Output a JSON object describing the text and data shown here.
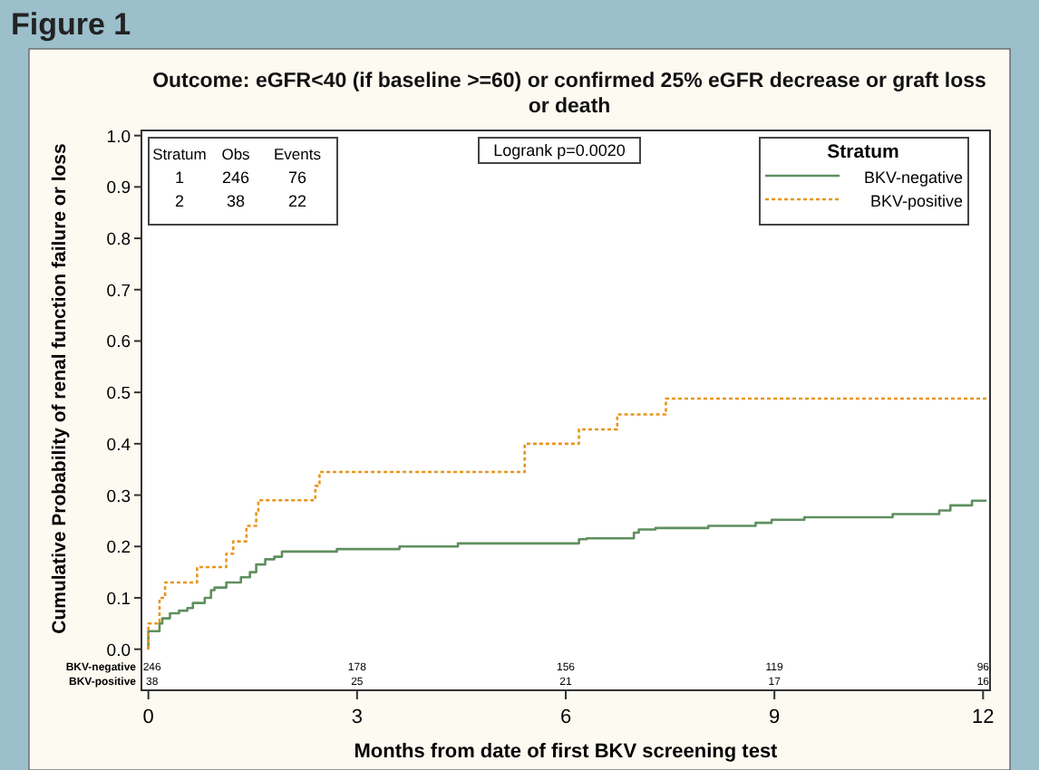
{
  "chart_data": {
    "type": "step",
    "title": "Outcome: eGFR<40 (if baseline >=60) or confirmed 25% eGFR decrease or graft loss or death",
    "xlabel": "Months from date of first BKV screening test",
    "ylabel": "Cumulative Probability of renal function failure or loss",
    "legend_title": "Stratum",
    "legend": "top right",
    "annotations": [
      "Figure 1",
      "Logrank p=0.0020",
      "Stratum",
      "Obs",
      "Events",
      "1",
      "246",
      "76",
      "2",
      "38",
      "22",
      "246",
      "178",
      "156",
      "119",
      "96",
      "38",
      "25",
      "21",
      "17",
      "16"
    ],
    "series": [
      {
        "name": "BKV-negative",
        "color": "#5f8f5f",
        "line_style": "solid",
        "x": [
          0,
          0,
          0.16,
          0.2,
          0.31,
          0.44,
          0.56,
          0.64,
          0.81,
          0.9,
          0.95,
          1.12,
          1.33,
          1.46,
          1.55,
          1.68,
          1.81,
          1.92,
          2.71,
          3.61,
          4.45,
          6.19,
          6.3,
          6.98,
          7.05,
          7.29,
          8.05,
          8.73,
          8.96,
          9.43,
          10.7,
          11.37,
          11.53,
          11.84,
          12.05
        ],
        "values": [
          0,
          0.035,
          0.05,
          0.06,
          0.07,
          0.075,
          0.08,
          0.09,
          0.1,
          0.115,
          0.12,
          0.13,
          0.14,
          0.15,
          0.165,
          0.175,
          0.18,
          0.19,
          0.195,
          0.2,
          0.206,
          0.214,
          0.216,
          0.227,
          0.233,
          0.236,
          0.24,
          0.246,
          0.252,
          0.257,
          0.263,
          0.27,
          0.28,
          0.289,
          0.289
        ]
      },
      {
        "name": "BKV-positive",
        "color": "#e8961e",
        "line_style": "dotted",
        "x": [
          0,
          0,
          0.16,
          0.24,
          0.7,
          1.12,
          1.22,
          1.41,
          1.55,
          1.58,
          2.4,
          2.46,
          5.41,
          6.19,
          6.74,
          7.44,
          12.05
        ],
        "values": [
          0,
          0.05,
          0.1,
          0.13,
          0.16,
          0.186,
          0.21,
          0.24,
          0.265,
          0.29,
          0.318,
          0.345,
          0.4,
          0.428,
          0.457,
          0.488,
          0.488
        ]
      }
    ],
    "xlim": [
      -0.1,
      12.1
    ],
    "xticks": [
      0,
      3,
      6,
      9,
      12
    ],
    "ylim": [
      -0.08,
      1.01
    ],
    "yticks": [
      {
        "value": 0,
        "label": "0.0"
      },
      {
        "value": 0.1,
        "label": "0.1"
      },
      {
        "value": 0.2,
        "label": "0.2"
      },
      {
        "value": 0.3,
        "label": "0.3"
      },
      {
        "value": 0.4,
        "label": "0.4"
      },
      {
        "value": 0.5,
        "label": "0.5"
      },
      {
        "value": 0.6,
        "label": "0.6"
      },
      {
        "value": 0.7,
        "label": "0.7"
      },
      {
        "value": 0.8,
        "label": "0.8"
      },
      {
        "value": 0.9,
        "label": "0.9"
      },
      {
        "value": 1,
        "label": "1.0"
      }
    ]
  }
}
